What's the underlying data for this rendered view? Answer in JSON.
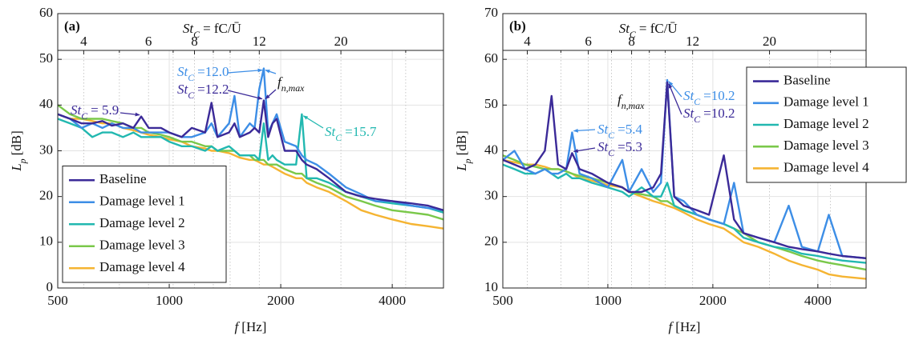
{
  "chart_data": [
    {
      "type": "line",
      "panel_label": "(a)",
      "xlabel": {
        "symbol": "f",
        "unit": "[Hz]"
      },
      "ylabel": {
        "symbol": "L",
        "sub": "p",
        "unit": "[dB]"
      },
      "x2label": {
        "symbol": "St",
        "sub": "C",
        "eq": "= fC/Ū"
      },
      "x_scale": "log",
      "xlim": [
        500,
        5500
      ],
      "xticks": [
        500,
        1000,
        2000,
        4000
      ],
      "ylim": [
        0,
        60
      ],
      "yticks": [
        0,
        10,
        20,
        30,
        40,
        50,
        60
      ],
      "x2lim": [
        3.4,
        38
      ],
      "x2ticks": [
        4,
        6,
        8,
        12,
        20
      ],
      "x2minorticks": [
        5,
        7,
        9,
        10,
        30
      ],
      "grid": true,
      "legend": "lower left",
      "x": [
        500,
        540,
        580,
        620,
        660,
        700,
        750,
        800,
        840,
        880,
        950,
        1000,
        1080,
        1150,
        1250,
        1300,
        1350,
        1450,
        1500,
        1550,
        1650,
        1700,
        1750,
        1800,
        1850,
        1900,
        1950,
        2050,
        2200,
        2280,
        2350,
        2500,
        2700,
        3000,
        3300,
        3600,
        4000,
        4500,
        5000,
        5500
      ],
      "series": [
        {
          "name": "Baseline",
          "color": "#3b2a98",
          "values": [
            38,
            37,
            36,
            36,
            36.5,
            35.5,
            36,
            35,
            37.5,
            35,
            35,
            34,
            33,
            35,
            34,
            40.5,
            33,
            34,
            36,
            33,
            34,
            35,
            34,
            41,
            33,
            36,
            37,
            30,
            30,
            28,
            27,
            26,
            24,
            21,
            20,
            19.5,
            19,
            18.5,
            18,
            17
          ]
        },
        {
          "name": "Damage level 1",
          "color": "#3d8ee6",
          "values": [
            38,
            37,
            35,
            36,
            35,
            36,
            35,
            35,
            34,
            34,
            34,
            34,
            33,
            33,
            34,
            36,
            33,
            36,
            42,
            33,
            36,
            35,
            43.5,
            48,
            34,
            36,
            38,
            32,
            31,
            29,
            28,
            27,
            25,
            22,
            20.5,
            19,
            19,
            18,
            17.5,
            17
          ]
        },
        {
          "name": "Damage level 2",
          "color": "#22b8b0",
          "values": [
            37,
            36,
            35,
            33,
            34,
            34,
            33,
            34,
            33,
            33,
            33,
            32,
            31,
            31,
            30,
            31,
            30,
            31,
            30,
            29,
            29,
            29,
            28,
            36,
            28,
            29,
            28,
            27,
            27,
            38,
            24,
            24,
            23,
            21,
            20,
            19,
            18.5,
            18,
            17.5,
            16.5
          ]
        },
        {
          "name": "Damage level 3",
          "color": "#7ac84a",
          "values": [
            40,
            38,
            37,
            37,
            37,
            36.5,
            36,
            35,
            35,
            34,
            33.5,
            33,
            32,
            32,
            31,
            31,
            30,
            30,
            30,
            29,
            29,
            28,
            28,
            28,
            27,
            27,
            27,
            26,
            25,
            25,
            24,
            23,
            22,
            20,
            19,
            18,
            17,
            16.5,
            16,
            15
          ]
        },
        {
          "name": "Damage level 4",
          "color": "#f5b432",
          "values": [
            38,
            37,
            37,
            36.5,
            36,
            36,
            35,
            34.5,
            34,
            33.5,
            33,
            32.5,
            32,
            31,
            30.5,
            30,
            30,
            29.5,
            29,
            28.5,
            28,
            28,
            27.5,
            27,
            27,
            26.5,
            26,
            25,
            24,
            24,
            23,
            22,
            21,
            19,
            17,
            16,
            15,
            14,
            13.5,
            13
          ]
        }
      ],
      "annotations": [
        {
          "label": "St",
          "sub": "C",
          "text": "= 5.9"
        },
        {
          "label": "St",
          "sub": "C",
          "text": "=12.0"
        },
        {
          "label": "St",
          "sub": "C",
          "text": "=12.2"
        },
        {
          "label": "f",
          "sub": "n,max"
        },
        {
          "label": "St",
          "sub": "C",
          "text": "=15.7"
        }
      ]
    },
    {
      "type": "line",
      "panel_label": "(b)",
      "xlabel": {
        "symbol": "f",
        "unit": "[Hz]"
      },
      "ylabel": {
        "symbol": "L",
        "sub": "p",
        "unit": "[dB]"
      },
      "x2label": {
        "symbol": "St",
        "sub": "C",
        "eq": "= fC/Ū"
      },
      "x_scale": "log",
      "xlim": [
        500,
        5500
      ],
      "xticks": [
        500,
        1000,
        2000,
        4000
      ],
      "ylim": [
        10,
        70
      ],
      "yticks": [
        10,
        20,
        30,
        40,
        50,
        60,
        70
      ],
      "x2lim": [
        3.4,
        38
      ],
      "x2ticks": [
        4,
        6,
        8,
        12,
        20
      ],
      "x2minorticks": [
        5,
        7,
        9,
        10,
        30
      ],
      "grid": true,
      "legend": "upper right",
      "x": [
        500,
        540,
        580,
        620,
        660,
        690,
        720,
        760,
        790,
        830,
        900,
        1000,
        1100,
        1150,
        1250,
        1350,
        1420,
        1480,
        1550,
        1650,
        1800,
        1950,
        2150,
        2300,
        2450,
        2700,
        3000,
        3300,
        3600,
        4000,
        4300,
        4700,
        5500
      ],
      "series": [
        {
          "name": "Baseline",
          "color": "#3b2a98",
          "values": [
            38,
            37,
            36,
            37,
            40,
            52,
            37,
            36,
            39.5,
            36,
            35,
            33,
            32,
            31,
            31,
            32,
            35,
            55,
            30,
            28,
            27,
            26,
            39,
            25,
            22,
            21,
            20,
            19,
            18.5,
            18,
            17.5,
            17,
            16.5
          ]
        },
        {
          "name": "Damage level 1",
          "color": "#3d8ee6",
          "values": [
            38,
            40,
            36,
            35,
            36,
            35,
            35,
            36,
            44,
            35,
            34,
            32,
            38,
            31,
            36,
            31,
            33,
            55.5,
            30,
            29,
            26,
            25,
            24,
            33,
            22,
            21,
            20,
            28,
            19,
            18,
            26,
            17,
            16.5
          ]
        },
        {
          "name": "Damage level 2",
          "color": "#22b8b0",
          "values": [
            37,
            36,
            35,
            35,
            36,
            35,
            34,
            35,
            34,
            34,
            33,
            32,
            31,
            30,
            32,
            30,
            30,
            33,
            28,
            27,
            26,
            25,
            24,
            23,
            21,
            20,
            19,
            18.5,
            17.5,
            17,
            16.5,
            16,
            15.5
          ]
        },
        {
          "name": "Damage level 3",
          "color": "#7ac84a",
          "values": [
            39,
            38,
            37,
            36.5,
            36,
            36,
            36,
            35.5,
            35,
            34.5,
            34,
            33,
            32,
            31,
            30.5,
            30,
            29,
            29,
            28,
            27,
            26,
            25,
            24,
            23,
            22,
            20,
            19,
            18,
            17,
            16,
            15.5,
            15,
            14
          ]
        },
        {
          "name": "Damage level 4",
          "color": "#f5b432",
          "values": [
            38,
            37.5,
            37,
            37,
            36.5,
            36,
            36,
            35.5,
            35,
            34,
            33.5,
            32.5,
            32,
            31,
            30,
            29,
            28.5,
            28,
            27.5,
            26.5,
            25,
            24,
            23,
            21.5,
            20,
            19,
            17.5,
            16,
            15,
            14,
            13,
            12.5,
            12
          ]
        }
      ],
      "annotations": [
        {
          "label": "St",
          "sub": "C",
          "text": "=5.4"
        },
        {
          "label": "St",
          "sub": "C",
          "text": "=5.3"
        },
        {
          "label": "f",
          "sub": "n,max"
        },
        {
          "label": "St",
          "sub": "C",
          "text": "=10.2"
        },
        {
          "label": "St",
          "sub": "C",
          "text": "=10.2"
        }
      ]
    }
  ]
}
